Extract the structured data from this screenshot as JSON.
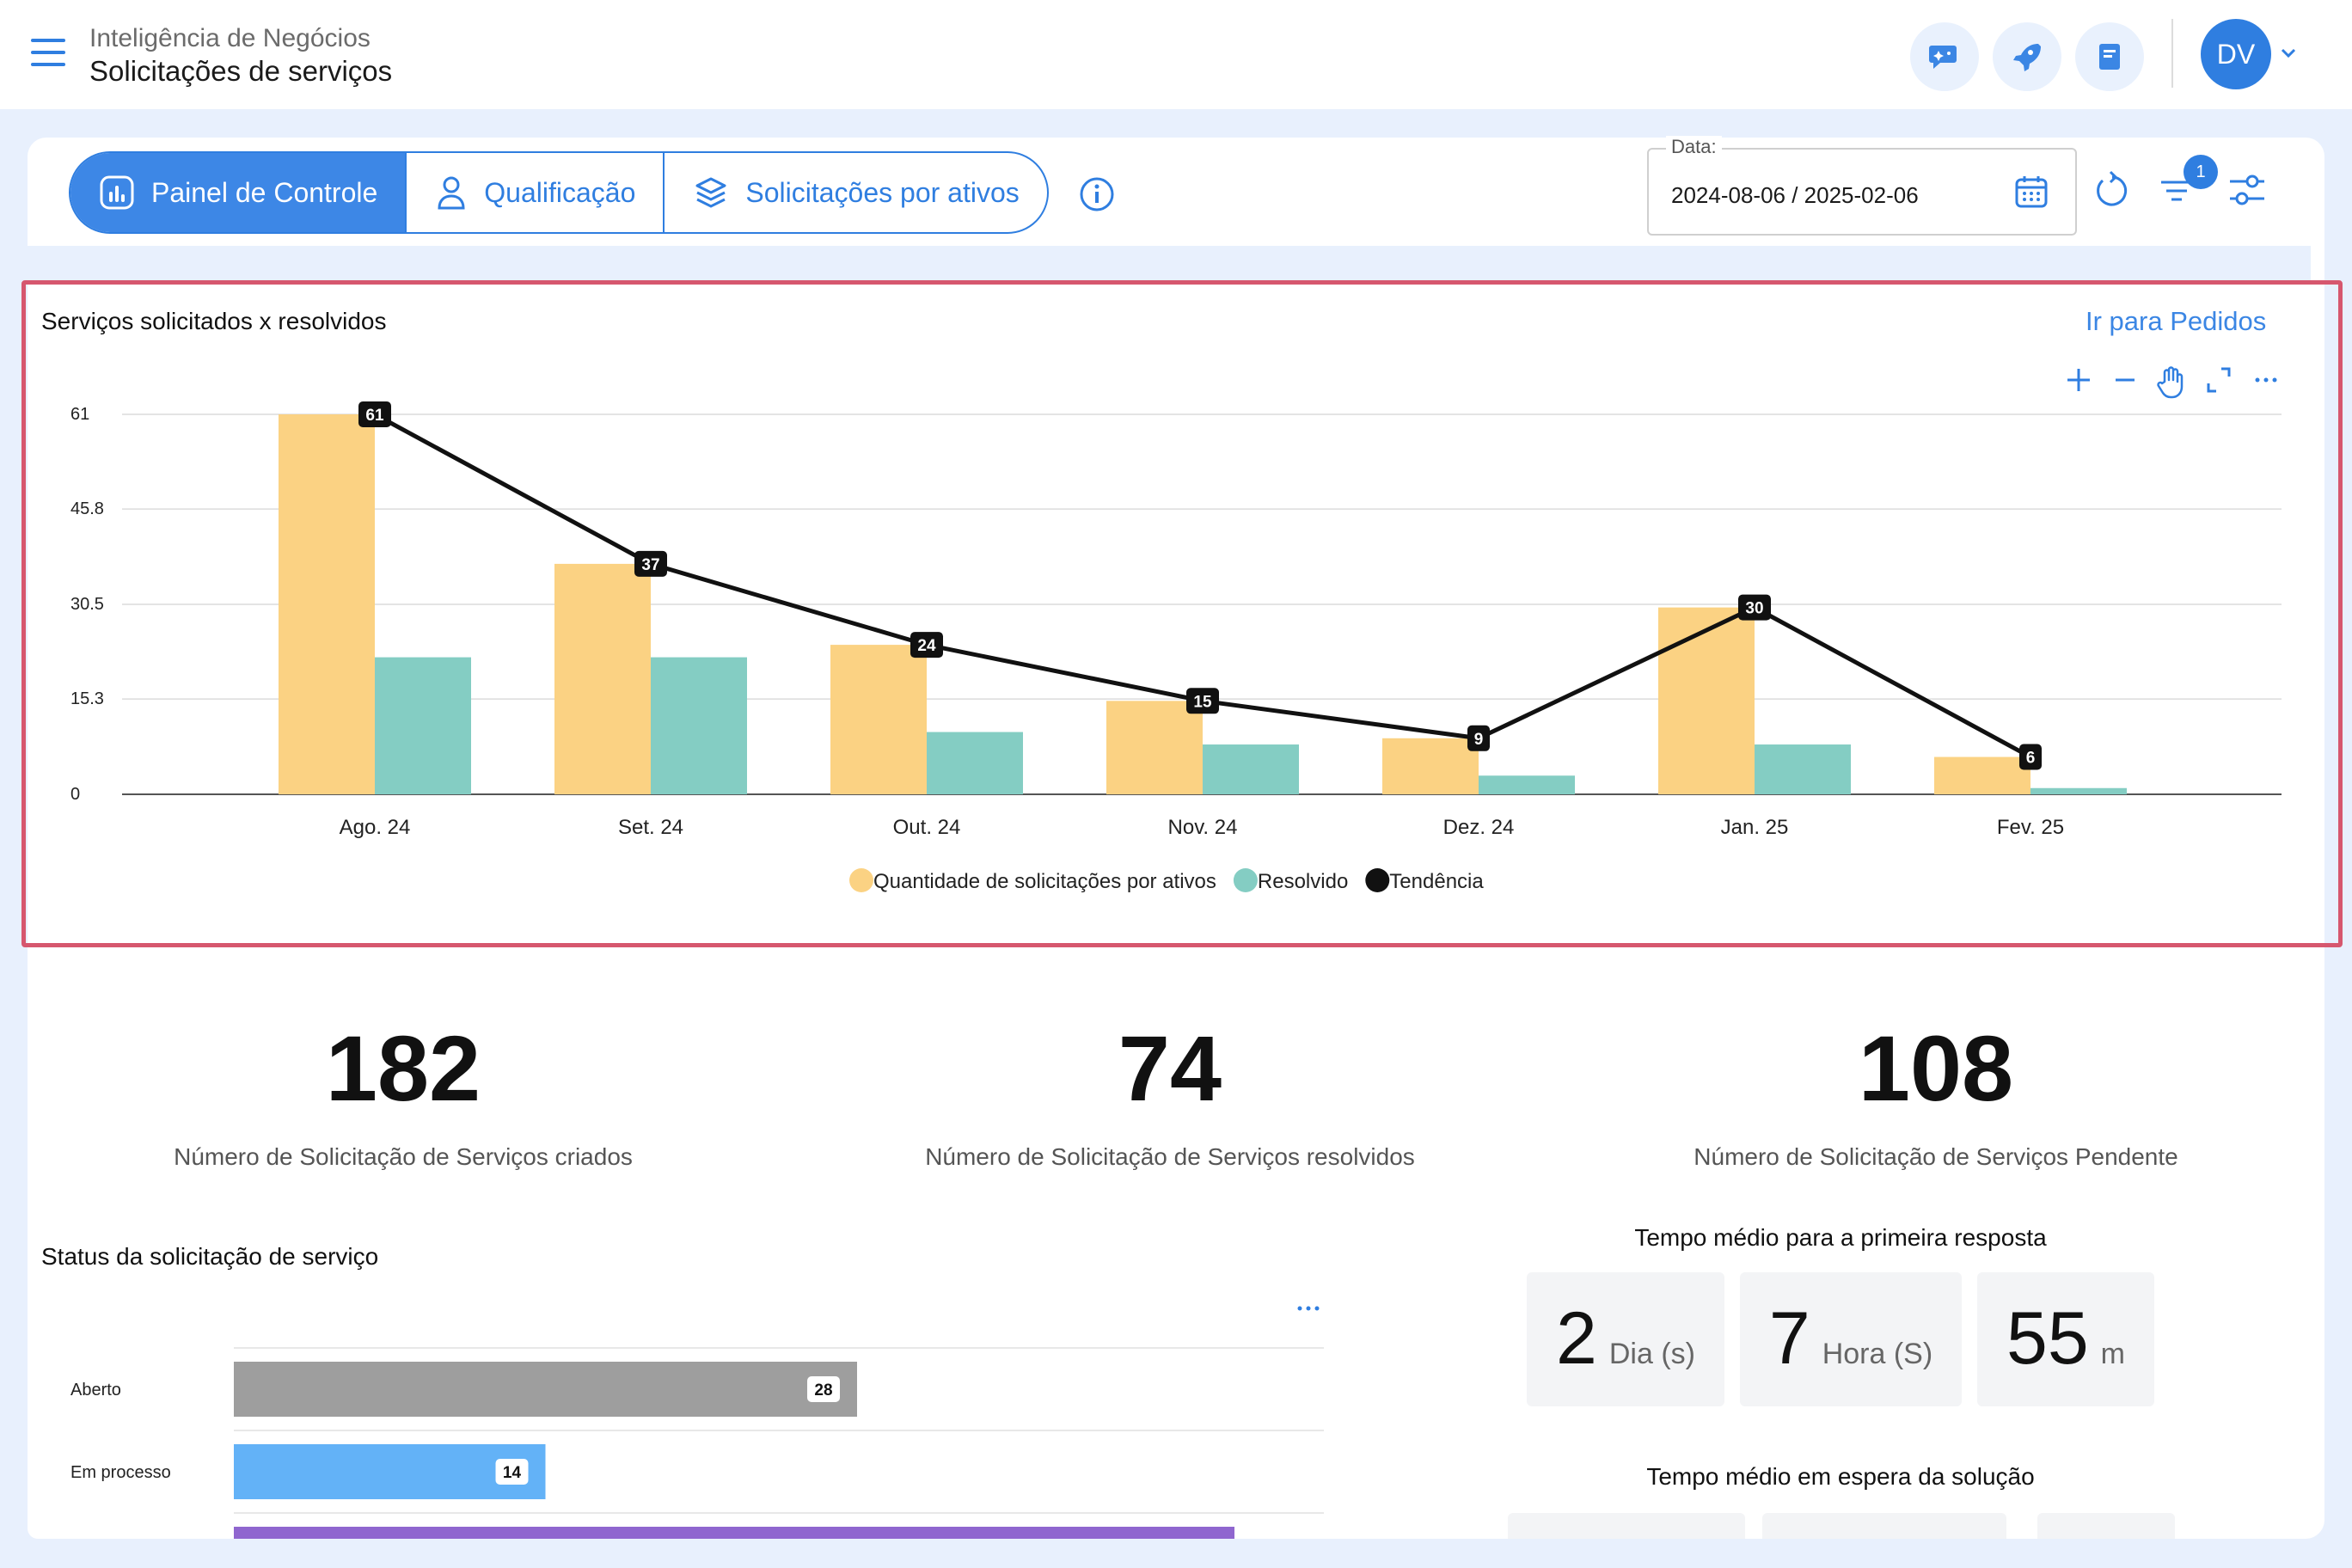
{
  "header": {
    "breadcrumb": "Inteligência de Negócios",
    "title": "Solicitações de serviços",
    "avatar_initials": "DV",
    "icons": [
      "chat-sparkle-icon",
      "rocket-icon",
      "book-icon"
    ]
  },
  "tabs": [
    {
      "label": "Painel de Controle",
      "icon": "chart-icon",
      "active": true
    },
    {
      "label": "Qualificação",
      "icon": "user-icon",
      "active": false
    },
    {
      "label": "Solicitações por ativos",
      "icon": "layers-icon",
      "active": false
    }
  ],
  "filters": {
    "date_label": "Data:",
    "date_value": "2024-08-06 / 2025-02-06",
    "filter_count": "1"
  },
  "main_chart": {
    "title": "Serviços solicitados x resolvidos",
    "link": "Ir para Pedidos"
  },
  "chart_data": [
    {
      "type": "bar",
      "title": "Serviços solicitados x resolvidos",
      "categories": [
        "Ago. 24",
        "Set. 24",
        "Out. 24",
        "Nov. 24",
        "Dez. 24",
        "Jan. 25",
        "Fev. 25"
      ],
      "y_ticks": [
        "61",
        "45.8",
        "30.5",
        "15.3",
        "0"
      ],
      "ylim": [
        0,
        61
      ],
      "grid": true,
      "legend_position": "bottom",
      "series": [
        {
          "name": "Quantidade de solicitações por ativos",
          "kind": "bar",
          "color": "#fbd283",
          "values": [
            61,
            37,
            24,
            15,
            9,
            30,
            6
          ]
        },
        {
          "name": "Resolvido",
          "kind": "bar",
          "color": "#84cdc3",
          "values": [
            22,
            22,
            10,
            8,
            3,
            8,
            1
          ]
        },
        {
          "name": "Tendência",
          "kind": "line",
          "color": "#111111",
          "values": [
            61,
            37,
            24,
            15,
            9,
            30,
            6
          ]
        }
      ]
    },
    {
      "type": "bar",
      "orientation": "horizontal",
      "title": "Status da solicitação de serviço",
      "categories": [
        "Aberto",
        "Em processo"
      ],
      "values": [
        28,
        14
      ],
      "colors": [
        "#9e9e9e",
        "#63b2f7"
      ]
    }
  ],
  "kpis": [
    {
      "value": "182",
      "label": "Número de Solicitação de Serviços criados"
    },
    {
      "value": "74",
      "label": "Número de Solicitação de Serviços resolvidos"
    },
    {
      "value": "108",
      "label": "Número de Solicitação de Serviços Pendente"
    }
  ],
  "status_chart": {
    "title": "Status da solicitação de serviço"
  },
  "first_response": {
    "title": "Tempo médio para a primeira resposta",
    "days": "2",
    "days_unit": "Dia (s)",
    "hours": "7",
    "hours_unit": "Hora (S)",
    "minutes": "55",
    "minutes_unit": "m"
  },
  "waiting_solution": {
    "title": "Tempo médio em espera da solução"
  }
}
